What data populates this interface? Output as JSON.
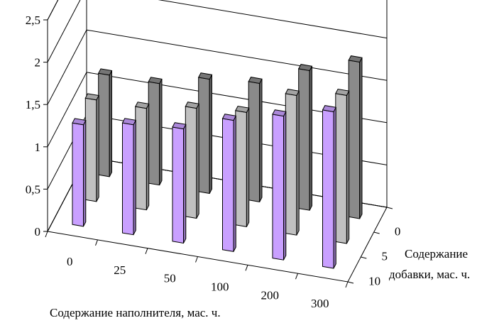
{
  "chart_data": {
    "type": "bar",
    "subtype": "3d-column",
    "title": "",
    "xlabel": "Содержание наполнителя, мас. ч.",
    "zlabel_line1": "Содержание",
    "zlabel_line2": "добавки, мас. ч.",
    "ylabel": ",",
    "categories": [
      "0",
      "25",
      "50",
      "100",
      "200",
      "300"
    ],
    "y_ticks": [
      "0",
      "0,5",
      "1",
      "1,5",
      "2",
      "2,5"
    ],
    "ylim": [
      0,
      2.5
    ],
    "grid": true,
    "legend": "none",
    "series": [
      {
        "label": "10",
        "color": "#c9a0ff",
        "values": [
          1.2,
          1.3,
          1.35,
          1.55,
          1.7,
          1.85
        ]
      },
      {
        "label": "5",
        "color": "#c0c0c0",
        "values": [
          1.2,
          1.2,
          1.3,
          1.35,
          1.65,
          1.75
        ]
      },
      {
        "label": "0",
        "color": "#8a8a8a",
        "values": [
          1.2,
          1.2,
          1.35,
          1.4,
          1.65,
          1.85
        ]
      }
    ]
  }
}
